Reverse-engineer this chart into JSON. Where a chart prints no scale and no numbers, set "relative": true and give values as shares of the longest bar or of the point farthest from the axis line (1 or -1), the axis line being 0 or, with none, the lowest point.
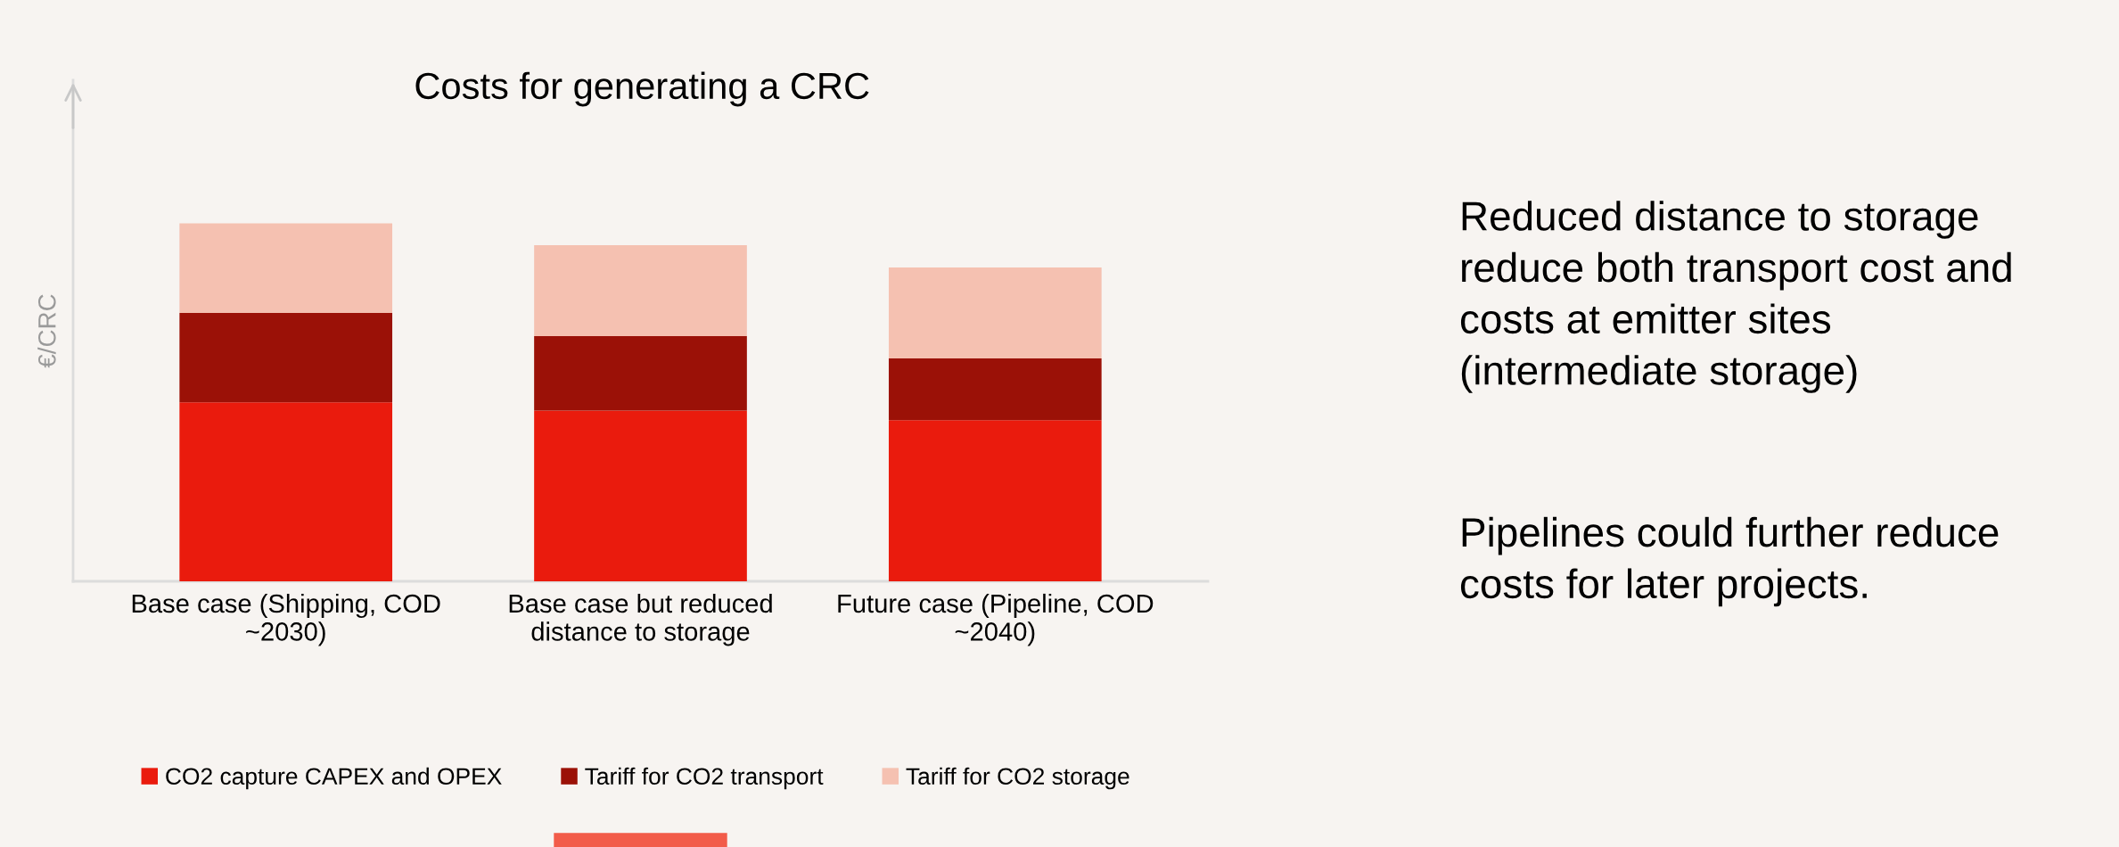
{
  "chart_data": {
    "type": "bar",
    "title": "Costs for generating a CRC",
    "ylabel": "€/CRC",
    "relative": true,
    "stacked": true,
    "legend": "bottom",
    "categories": [
      "Base case (Shipping, COD\n~2030)",
      "Base case but reduced\ndistance to storage",
      "Future case (Pipeline, COD\n~2040)"
    ],
    "series": [
      {
        "name": "CO2 capture CAPEX and OPEX",
        "color": "#ea1b0d",
        "values": [
          0.5,
          0.477,
          0.45
        ]
      },
      {
        "name": "Tariff for CO2 transport",
        "color": "#9b1107",
        "values": [
          0.25,
          0.208,
          0.173
        ]
      },
      {
        "name": "Tariff for CO2 storage",
        "color": "#f5c1b1",
        "values": [
          0.25,
          0.254,
          0.254
        ]
      }
    ],
    "annotations": [
      "Reduced distance to storage\nreduce both transport cost and\ncosts at emitter sites\n(intermediate storage)",
      "Pipelines could further reduce\ncosts for later projects."
    ]
  }
}
